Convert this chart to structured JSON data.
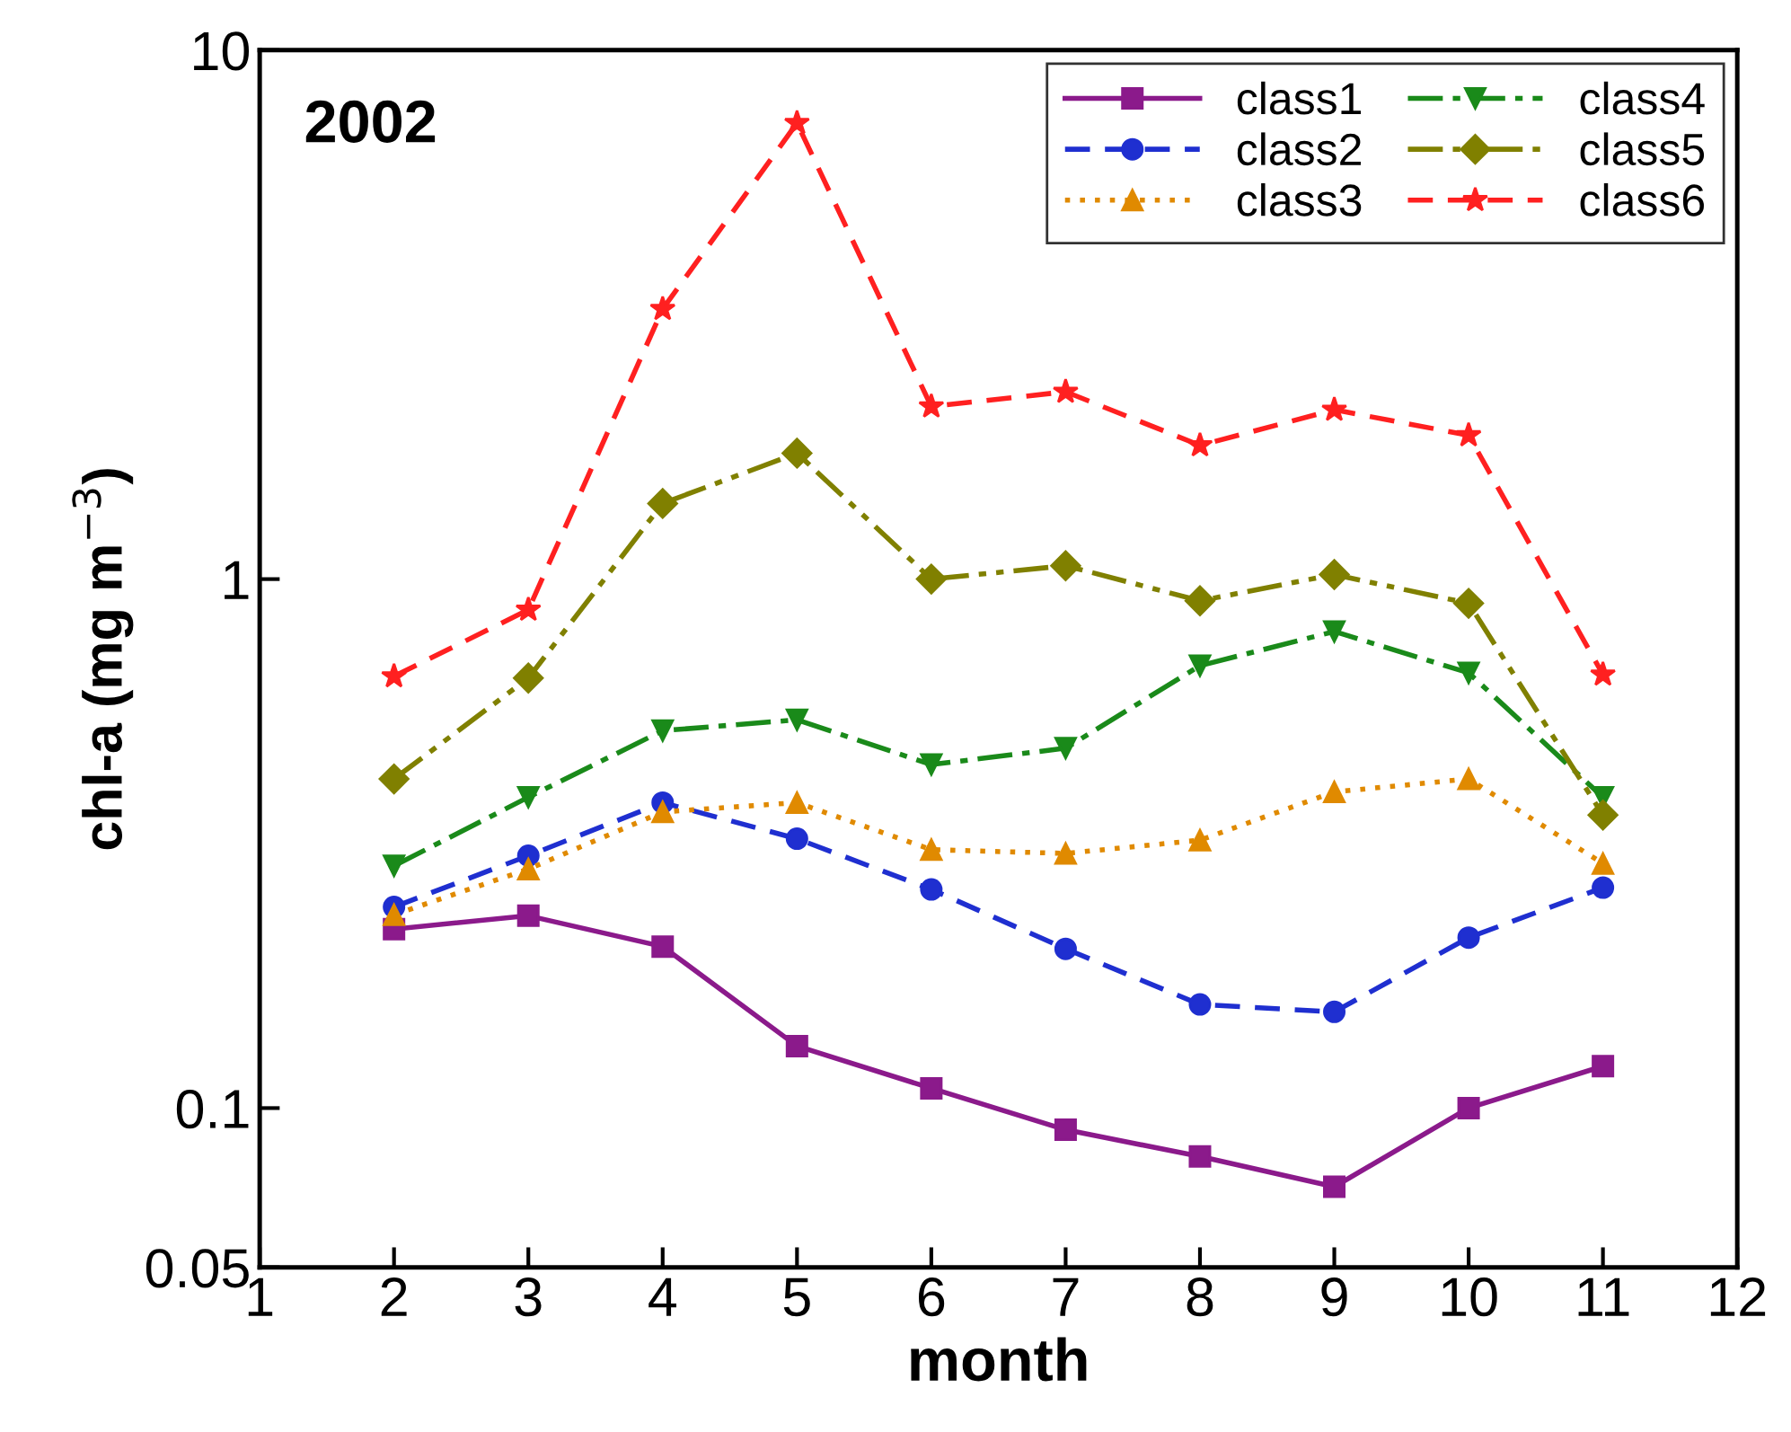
{
  "chart_data": {
    "type": "line",
    "title": "2002",
    "xlabel": "month",
    "ylabel": "chl-a (mg m$^{−3}$)",
    "x": [
      2,
      3,
      4,
      5,
      6,
      7,
      8,
      9,
      10,
      11
    ],
    "xlim": [
      1,
      12
    ],
    "xticks": [
      1,
      2,
      3,
      4,
      5,
      6,
      7,
      8,
      9,
      10,
      11,
      12
    ],
    "ylim": [
      0.05,
      10
    ],
    "yticks": [
      0.05,
      0.1,
      1,
      10
    ],
    "log": "y",
    "grid": false,
    "legend": "top right",
    "series": [
      {
        "name": "class1",
        "color": "#8b1a8b",
        "marker": "square",
        "line_style": "solid",
        "values": [
          0.218,
          0.231,
          0.202,
          0.131,
          0.109,
          0.091,
          0.081,
          0.071,
          0.1,
          0.12
        ]
      },
      {
        "name": "class2",
        "color": "#1f2fd0",
        "marker": "circle",
        "line_style": "dashed",
        "values": [
          0.24,
          0.3,
          0.378,
          0.323,
          0.259,
          0.2,
          0.157,
          0.152,
          0.21,
          0.261
        ]
      },
      {
        "name": "class3",
        "color": "#e08a00",
        "marker": "triangle",
        "line_style": "dotted",
        "values": [
          0.232,
          0.283,
          0.363,
          0.378,
          0.308,
          0.303,
          0.321,
          0.396,
          0.419,
          0.29
        ]
      },
      {
        "name": "class4",
        "color": "#1a8a1a",
        "marker": "triangle_down",
        "line_style": "dashdot",
        "values": [
          0.287,
          0.387,
          0.517,
          0.542,
          0.446,
          0.479,
          0.686,
          0.796,
          0.665,
          0.387
        ]
      },
      {
        "name": "class5",
        "color": "#808000",
        "marker": "diamond",
        "line_style": "dashdotdot",
        "values": [
          0.419,
          0.65,
          1.39,
          1.73,
          1.0,
          1.06,
          0.91,
          1.02,
          0.9,
          0.358
        ]
      },
      {
        "name": "class6",
        "color": "#ff2020",
        "marker": "star",
        "line_style": "dashed",
        "values": [
          0.655,
          0.875,
          3.24,
          7.28,
          2.12,
          2.26,
          1.79,
          2.09,
          1.87,
          0.66
        ]
      }
    ]
  }
}
